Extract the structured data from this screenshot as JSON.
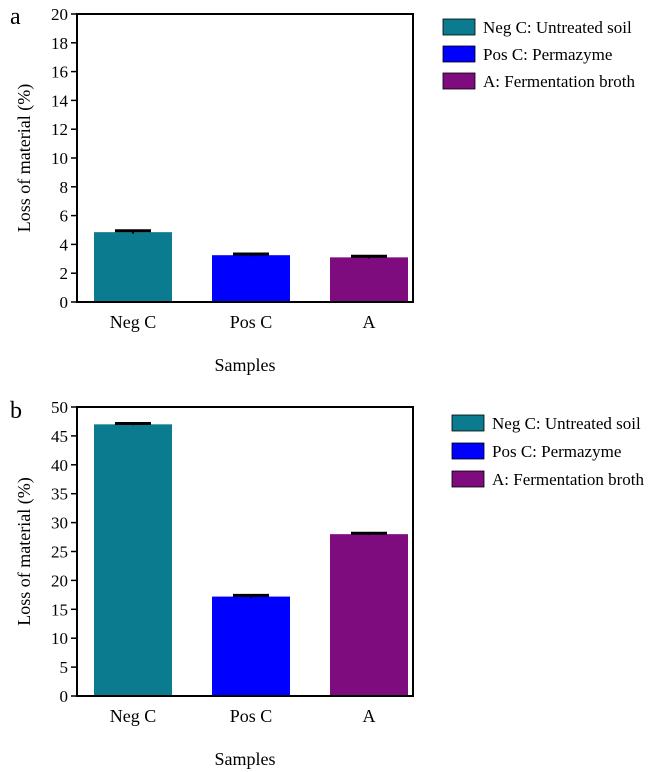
{
  "chart_data": [
    {
      "panel": "a",
      "type": "bar",
      "categories": [
        "Neg C",
        "Pos C",
        "A"
      ],
      "values": [
        4.85,
        3.25,
        3.1
      ],
      "error": [
        0.1,
        0.08,
        0.08
      ],
      "colors": [
        "#0b7b8f",
        "#0000ff",
        "#7e0c7e"
      ],
      "xlabel": "Samples",
      "ylabel": "Loss of material (%)",
      "ylim": [
        0,
        20
      ],
      "yticks": [
        "0",
        "2",
        "4",
        "6",
        "8",
        "10",
        "12",
        "14",
        "16",
        "18",
        "20"
      ],
      "grid": false,
      "legend": [
        "Neg C: Untreated soil",
        "Pos C: Permazyme",
        "A: Fermentation broth"
      ],
      "legend_position": "right"
    },
    {
      "panel": "b",
      "type": "bar",
      "categories": [
        "Neg C",
        "Pos C",
        "A"
      ],
      "values": [
        47,
        17.2,
        28
      ],
      "error": [
        0.15,
        0.2,
        0.15
      ],
      "colors": [
        "#0b7b8f",
        "#0000ff",
        "#7e0c7e"
      ],
      "xlabel": "Samples",
      "ylabel": "Loss of material (%)",
      "ylim": [
        0,
        50
      ],
      "yticks": [
        "0",
        "5",
        "10",
        "15",
        "20",
        "25",
        "30",
        "35",
        "40",
        "45",
        "50"
      ],
      "grid": false,
      "legend": [
        "Neg C: Untreated soil",
        "Pos C: Permazyme",
        "A: Fermentation broth"
      ],
      "legend_position": "right"
    }
  ]
}
